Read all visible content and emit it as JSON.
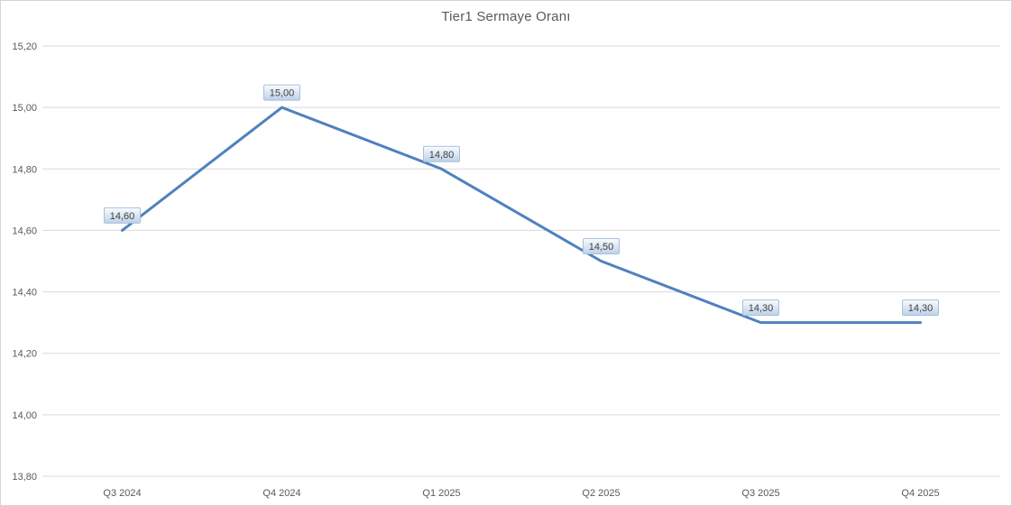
{
  "window": {
    "background": "#ffffff",
    "frame_border_color": "#d5d5d5"
  },
  "chart_data": {
    "type": "line",
    "title": "Tier1 Sermaye Oranı",
    "categories": [
      "Q3 2024",
      "Q4 2024",
      "Q1 2025",
      "Q2 2025",
      "Q3 2025",
      "Q4 2025"
    ],
    "series": [
      {
        "name": "Tier1 Sermaye Oranı",
        "values": [
          14.6,
          15.0,
          14.8,
          14.5,
          14.3,
          14.3
        ]
      }
    ],
    "data_labels": [
      "14,60",
      "15,00",
      "14,80",
      "14,50",
      "14,30",
      "14,30"
    ],
    "xlabel": "",
    "ylabel": "",
    "y_axis": {
      "min": 13.8,
      "max": 15.2,
      "step": 0.2,
      "tick_labels": [
        "15,20",
        "15,00",
        "14,80",
        "14,60",
        "14,40",
        "14,20",
        "14,00",
        "13,80"
      ]
    },
    "grid": true,
    "legend_position": "none",
    "colors": {
      "line": "#4F81BD",
      "gridline": "#D9D9D9",
      "title_text": "#595959",
      "axis_text": "#595959",
      "label_text": "#404040",
      "label_border": "#A7BFDE",
      "label_fill_top": "#FAFCFE",
      "label_fill_bottom": "#BDD0E8"
    }
  }
}
